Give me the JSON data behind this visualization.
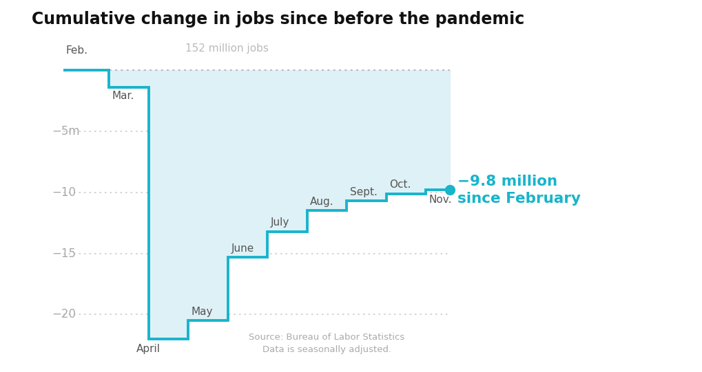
{
  "title": "Cumulative change in jobs since before the pandemic",
  "months": [
    "Feb.",
    "Mar.",
    "April",
    "May",
    "June",
    "July",
    "Aug.",
    "Sept.",
    "Oct.",
    "Nov."
  ],
  "values": [
    0.0,
    -1.4,
    -22.0,
    -20.5,
    -15.3,
    -13.2,
    -11.5,
    -10.7,
    -10.1,
    -9.8
  ],
  "reference_label": "152 million jobs",
  "end_label_line1": "−9.8 million",
  "end_label_line2": "since February",
  "yticks": [
    0,
    -5,
    -10,
    -15,
    -20
  ],
  "ytick_labels": [
    "",
    "−5m",
    "−10",
    "−15",
    "−20"
  ],
  "ylim": [
    -23.5,
    1.8
  ],
  "line_color": "#18B4CC",
  "fill_color": "#DEF1F6",
  "dot_color": "#18B4CC",
  "ref_line_color": "#BBBBBB",
  "grid_color": "#CCCCCC",
  "label_color": "#AAAAAA",
  "month_label_color": "#555555",
  "annotation_color": "#18B4CC",
  "title_fontsize": 17,
  "source_text_line1": "Source: Bureau of Labor Statistics",
  "source_text_line2": "Data is seasonally adjusted.",
  "background_color": "#FFFFFF",
  "month_label_positions": [
    {
      "month": "Feb.",
      "xi": 0,
      "xoffset": -0.05,
      "yoffset": 1.1,
      "va": "bottom",
      "ha": "left"
    },
    {
      "month": "Mar.",
      "xi": 1,
      "xoffset": 0.08,
      "yoffset": -1.8,
      "va": "top",
      "ha": "left"
    },
    {
      "month": "April",
      "xi": 2,
      "xoffset": 0.0,
      "yoffset": -1.0,
      "va": "top",
      "ha": "center"
    },
    {
      "month": "May",
      "xi": 3,
      "xoffset": 0.08,
      "yoffset": 1.5,
      "va": "bottom",
      "ha": "left"
    },
    {
      "month": "June",
      "xi": 4,
      "xoffset": 0.08,
      "yoffset": 1.5,
      "va": "bottom",
      "ha": "left"
    },
    {
      "month": "July",
      "xi": 5,
      "xoffset": 0.08,
      "yoffset": 1.5,
      "va": "bottom",
      "ha": "left"
    },
    {
      "month": "Aug.",
      "xi": 6,
      "xoffset": 0.08,
      "yoffset": 1.5,
      "va": "bottom",
      "ha": "left"
    },
    {
      "month": "Sept.",
      "xi": 7,
      "xoffset": 0.08,
      "yoffset": 1.5,
      "va": "bottom",
      "ha": "left"
    },
    {
      "month": "Oct.",
      "xi": 8,
      "xoffset": 0.08,
      "yoffset": 1.5,
      "va": "bottom",
      "ha": "left"
    },
    {
      "month": "Nov.",
      "xi": 9,
      "xoffset": 0.08,
      "yoffset": 1.5,
      "va": "bottom",
      "ha": "left"
    }
  ]
}
